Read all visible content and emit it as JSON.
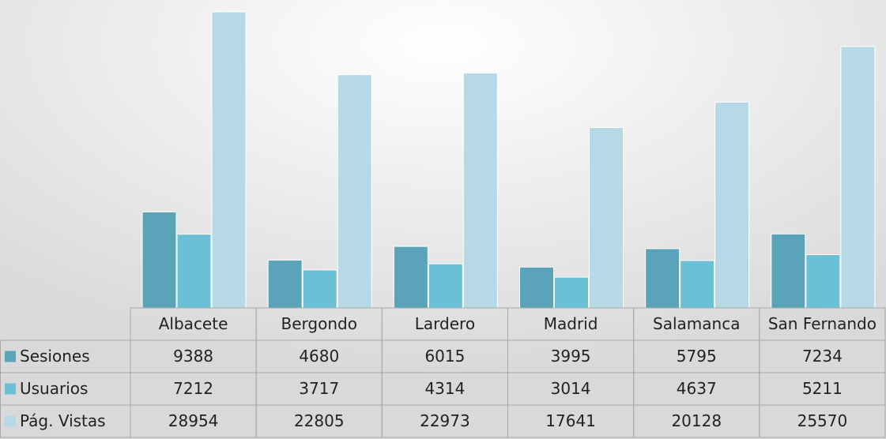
{
  "chart_data": {
    "type": "bar",
    "categories": [
      "Albacete",
      "Bergondo",
      "Lardero",
      "Madrid",
      "Salamanca",
      "San Fernando"
    ],
    "series": [
      {
        "name": "Sesiones",
        "color": "#5ba3b8",
        "values": [
          9388,
          4680,
          6015,
          3995,
          5795,
          7234
        ]
      },
      {
        "name": "Usuarios",
        "color": "#6cc0d6",
        "values": [
          7212,
          3717,
          4314,
          3014,
          4637,
          5211
        ]
      },
      {
        "name": "Pág. Vistas",
        "color": "#b6d9e5",
        "values": [
          28954,
          22805,
          22973,
          17641,
          20128,
          25570
        ]
      }
    ]
  }
}
